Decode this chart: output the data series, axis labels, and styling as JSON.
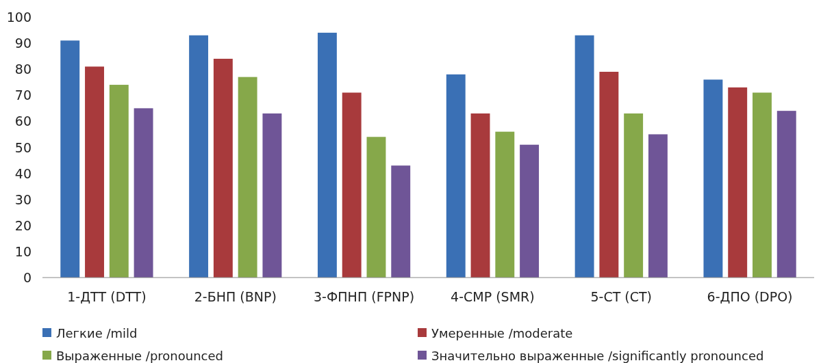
{
  "chart_data": {
    "type": "bar",
    "categories": [
      "1-ДТТ (DTT)",
      "2-БНП (BNP)",
      "3-ФПНП (FPNP)",
      "4-СМР (SMR)",
      "5-СТ (CT)",
      "6-ДПО (DPO)"
    ],
    "series": [
      {
        "name": "Легкие /mild",
        "color": "#3a70b5",
        "values": [
          91,
          93,
          94,
          78,
          93,
          76
        ]
      },
      {
        "name": "Умеренные /moderate",
        "color": "#a83a3c",
        "values": [
          81,
          84,
          71,
          63,
          79,
          73
        ]
      },
      {
        "name": "Выраженные /pronounced",
        "color": "#86a84a",
        "values": [
          74,
          77,
          54,
          56,
          63,
          71
        ]
      },
      {
        "name": "Значительно выраженные /significantly pronounced",
        "color": "#6f5597",
        "values": [
          65,
          63,
          43,
          51,
          55,
          64
        ]
      }
    ],
    "ylim": [
      0,
      100
    ],
    "yticks": [
      0,
      10,
      20,
      30,
      40,
      50,
      60,
      70,
      80,
      90,
      100
    ],
    "grid": false,
    "legend": "bottom"
  }
}
